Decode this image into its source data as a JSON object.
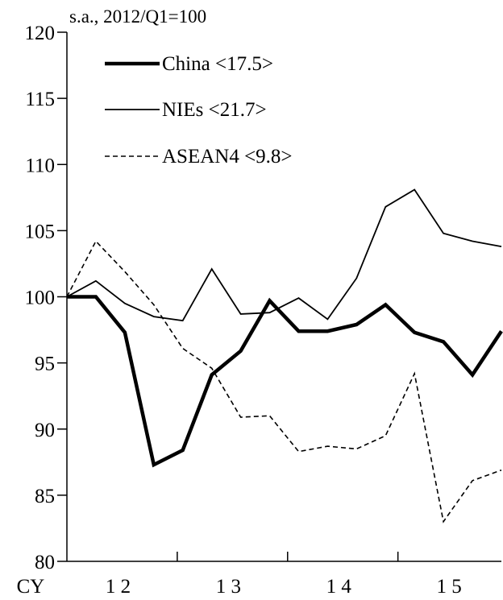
{
  "chart_data": {
    "type": "line",
    "unit_label": "s.a., 2012/Q1=100",
    "ylim": [
      80,
      120
    ],
    "yticks": [
      80,
      85,
      90,
      95,
      100,
      105,
      110,
      115,
      120
    ],
    "x_count": 16,
    "x_prefix": "CY",
    "x_year_labels": [
      {
        "label": "1 2",
        "start": 0
      },
      {
        "label": "1 3",
        "start": 4
      },
      {
        "label": "1 4",
        "start": 8
      },
      {
        "label": "1 5",
        "start": 12
      }
    ],
    "series": [
      {
        "name": "China <17.5>",
        "style": "thick",
        "color": "#000000",
        "values": [
          100.0,
          100.0,
          97.3,
          87.3,
          88.4,
          94.1,
          95.9,
          99.7,
          97.4,
          97.4,
          97.9,
          99.4,
          97.3,
          96.6,
          94.1,
          97.4
        ]
      },
      {
        "name": "NIEs <21.7>",
        "style": "thin",
        "color": "#000000",
        "values": [
          100.0,
          101.2,
          99.5,
          98.5,
          98.2,
          102.1,
          98.7,
          98.8,
          99.9,
          98.3,
          101.4,
          106.8,
          108.1,
          104.8,
          104.2,
          103.8
        ]
      },
      {
        "name": "ASEAN4 <9.8>",
        "style": "dashed",
        "color": "#000000",
        "values": [
          100.0,
          104.2,
          101.9,
          99.4,
          96.1,
          94.6,
          90.9,
          91.0,
          88.3,
          88.7,
          88.5,
          89.5,
          94.2,
          83.0,
          86.1,
          86.9
        ]
      }
    ],
    "legend_position": "top-left",
    "grid": false
  }
}
